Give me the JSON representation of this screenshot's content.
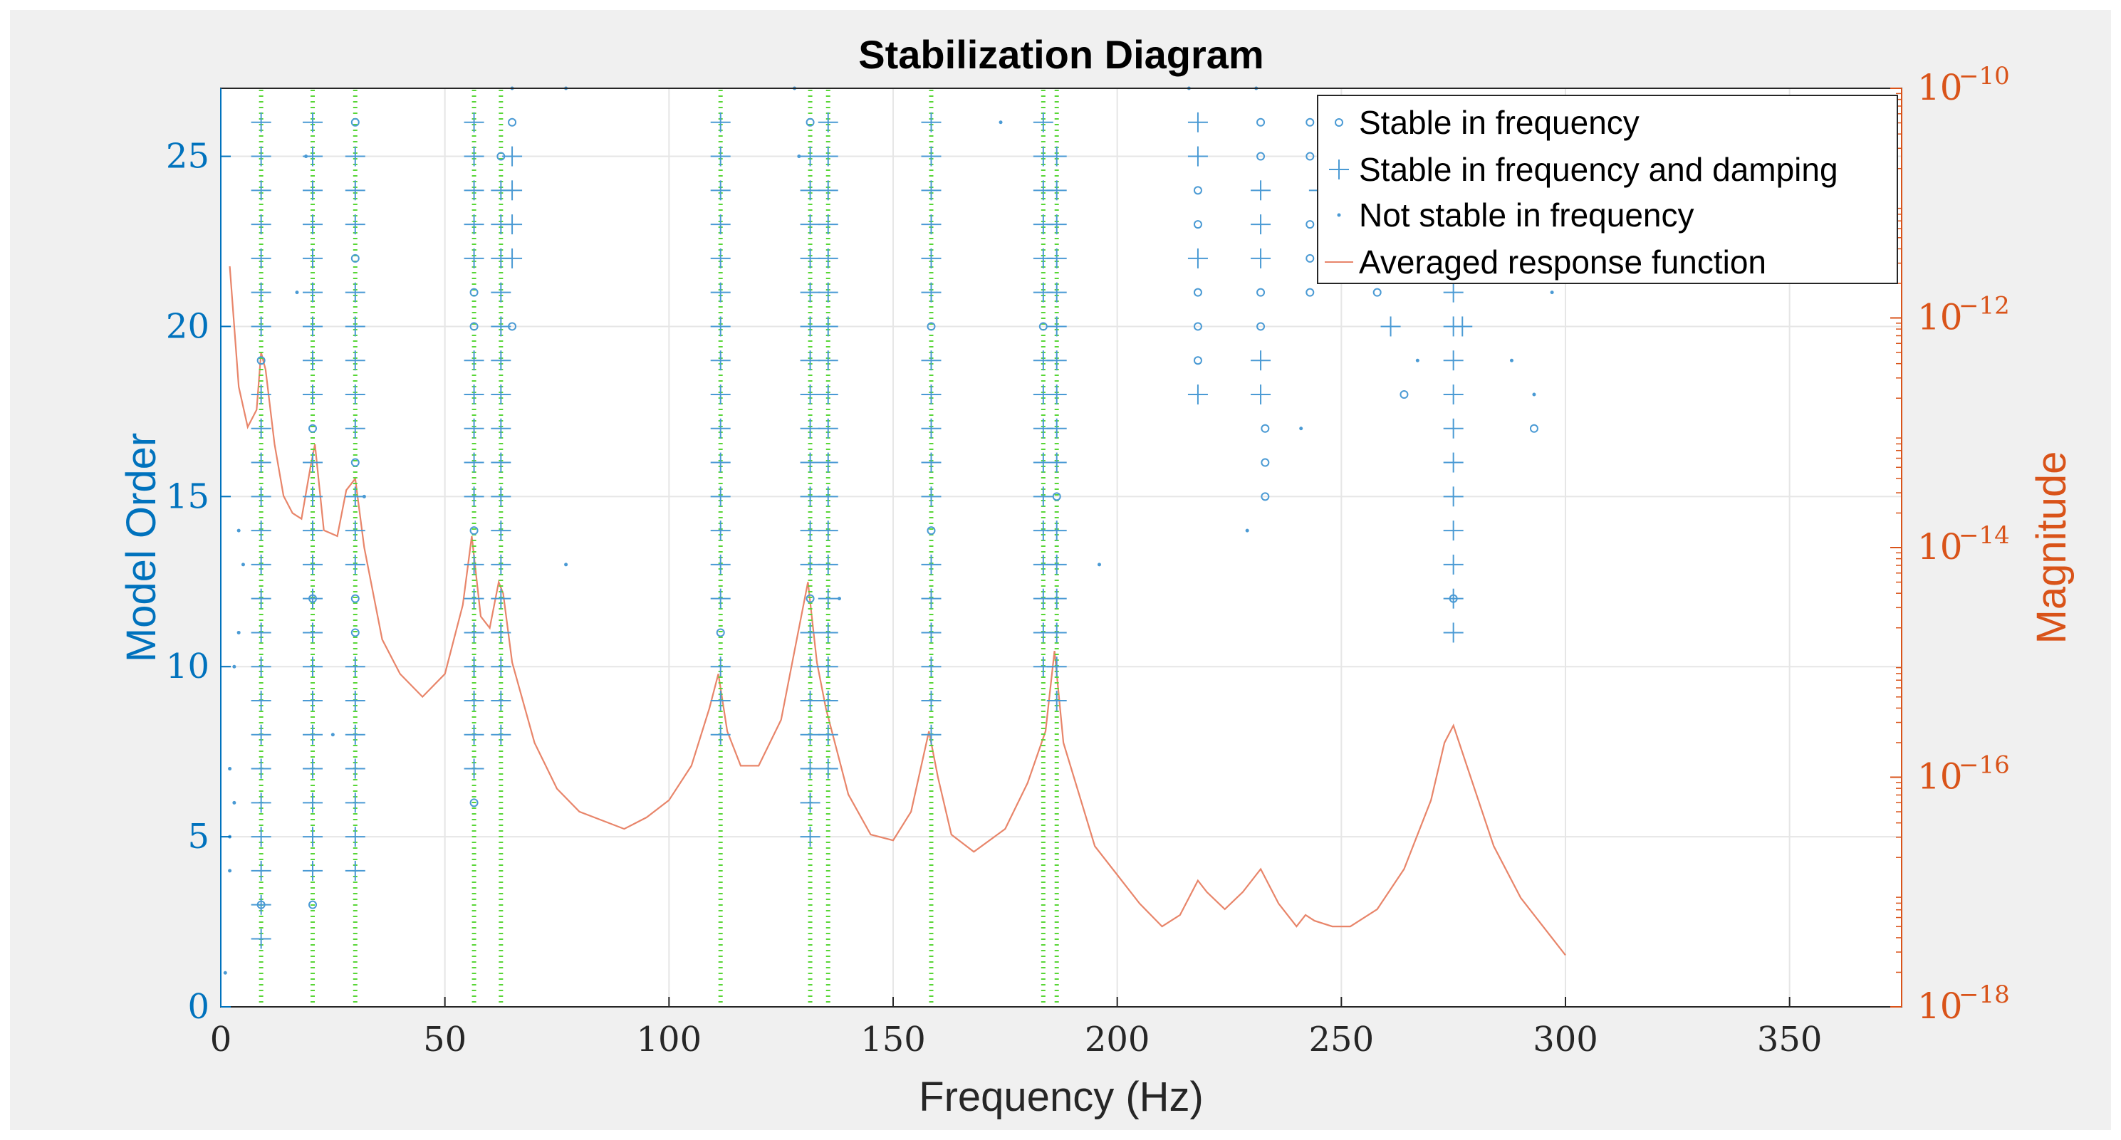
{
  "chart_data": {
    "type": "scatter",
    "title": "Stabilization Diagram",
    "xlabel": "Frequency (Hz)",
    "ylabel_left": "Model Order",
    "ylabel_right": "Magnitude",
    "xlim": [
      0,
      375
    ],
    "ylim_left": [
      0,
      27
    ],
    "ylim_right_log10": [
      -18,
      -10
    ],
    "x_ticks": [
      "0",
      "50",
      "100",
      "150",
      "200",
      "250",
      "300",
      "350"
    ],
    "x_tick_values": [
      0,
      50,
      100,
      150,
      200,
      250,
      300,
      350
    ],
    "y_ticks_left": [
      "0",
      "5",
      "10",
      "15",
      "20",
      "25"
    ],
    "y_tick_values_left": [
      0,
      5,
      10,
      15,
      20,
      25
    ],
    "y_ticks_right": [
      {
        "base": "10",
        "exp": "−10",
        "value": -10
      },
      {
        "base": "10",
        "exp": "−12",
        "value": -12
      },
      {
        "base": "10",
        "exp": "−14",
        "value": -14
      },
      {
        "base": "10",
        "exp": "−16",
        "value": -16
      },
      {
        "base": "10",
        "exp": "−18",
        "value": -18
      }
    ],
    "grid": true,
    "legend_position": "top-right",
    "legend": [
      "Stable in frequency",
      "Stable in frequency and damping",
      "Not stable in frequency",
      "Averaged response function"
    ],
    "colors": {
      "left_axis": "#0072bd",
      "right_axis": "#d95319",
      "markers": "#4a9ad4",
      "frf": "#e8856a",
      "modes": "#58d636",
      "grid": "#e6e6e6",
      "background": "#f0f0f0"
    },
    "stable_modes_hz": [
      9,
      20.5,
      30,
      56.5,
      62.5,
      111.5,
      131.5,
      135.5,
      158.5,
      183.5,
      186.5
    ],
    "series_stable_freq_damp": [
      {
        "x": 9,
        "orders": [
          2,
          3,
          4,
          5,
          6,
          7,
          8,
          9,
          10,
          11,
          12,
          13,
          14,
          15,
          16,
          17,
          18,
          20,
          21,
          22,
          23,
          24,
          25,
          26
        ]
      },
      {
        "x": 20.5,
        "orders": [
          4,
          5,
          6,
          7,
          8,
          9,
          10,
          11,
          12,
          13,
          14,
          15,
          16,
          18,
          19,
          20,
          21,
          22,
          23,
          24,
          25,
          26
        ]
      },
      {
        "x": 30,
        "orders": [
          4,
          5,
          6,
          7,
          8,
          9,
          10,
          13,
          14,
          15,
          17,
          18,
          19,
          20,
          21,
          23,
          24,
          25
        ]
      },
      {
        "x": 56.5,
        "orders": [
          7,
          8,
          9,
          10,
          11,
          12,
          13,
          15,
          16,
          17,
          18,
          19,
          22,
          23,
          24,
          25,
          26
        ]
      },
      {
        "x": 62.5,
        "orders": [
          8,
          9,
          10,
          11,
          12,
          13,
          14,
          15,
          16,
          17,
          18,
          19,
          20,
          21,
          22,
          23,
          24
        ]
      },
      {
        "x": 65,
        "orders": [
          22,
          23,
          24,
          25
        ]
      },
      {
        "x": 111.5,
        "orders": [
          8,
          9,
          10,
          12,
          13,
          14,
          15,
          16,
          17,
          18,
          19,
          20,
          21,
          22,
          23,
          24,
          25,
          26
        ]
      },
      {
        "x": 131.5,
        "orders": [
          5,
          6,
          7,
          8,
          9,
          10,
          11,
          13,
          14,
          15,
          16,
          17,
          18,
          19,
          20,
          21,
          22,
          23,
          24,
          25
        ]
      },
      {
        "x": 135.5,
        "orders": [
          7,
          8,
          9,
          10,
          11,
          12,
          13,
          14,
          15,
          16,
          17,
          18,
          19,
          20,
          21,
          22,
          23,
          24,
          25,
          26
        ]
      },
      {
        "x": 158.5,
        "orders": [
          8,
          9,
          10,
          11,
          12,
          13,
          15,
          16,
          17,
          18,
          19,
          21,
          22,
          23,
          24,
          25,
          26
        ]
      },
      {
        "x": 183.5,
        "orders": [
          10,
          11,
          12,
          13,
          14,
          15,
          16,
          17,
          18,
          19,
          21,
          22,
          23,
          24,
          25,
          26
        ]
      },
      {
        "x": 186.5,
        "orders": [
          9,
          10,
          11,
          12,
          13,
          14,
          16,
          17,
          18,
          19,
          20,
          21,
          22,
          23,
          24,
          25
        ]
      },
      {
        "x": 218,
        "orders": [
          18,
          22,
          25,
          26
        ]
      },
      {
        "x": 232,
        "orders": [
          18,
          19,
          22,
          23,
          24
        ]
      },
      {
        "x": 245,
        "orders": [
          24
        ]
      },
      {
        "x": 261,
        "orders": [
          20
        ]
      },
      {
        "x": 275,
        "orders": [
          11,
          12,
          13,
          14,
          15,
          16,
          17,
          18,
          19,
          20,
          21
        ]
      },
      {
        "x": 277,
        "orders": [
          20
        ]
      }
    ],
    "series_stable_freq": [
      {
        "x": 9,
        "orders": [
          3,
          19
        ]
      },
      {
        "x": 20.5,
        "orders": [
          3,
          12,
          17
        ]
      },
      {
        "x": 30,
        "orders": [
          11,
          12,
          16,
          22,
          26
        ]
      },
      {
        "x": 56.5,
        "orders": [
          6,
          14,
          20,
          21
        ]
      },
      {
        "x": 62.5,
        "orders": [
          25
        ]
      },
      {
        "x": 65,
        "orders": [
          20,
          26
        ]
      },
      {
        "x": 111.5,
        "orders": [
          11
        ]
      },
      {
        "x": 131.5,
        "orders": [
          12,
          26
        ]
      },
      {
        "x": 158.5,
        "orders": [
          14,
          20
        ]
      },
      {
        "x": 183.5,
        "orders": [
          20
        ]
      },
      {
        "x": 186.5,
        "orders": [
          15
        ]
      },
      {
        "x": 218,
        "orders": [
          19,
          20,
          21,
          23,
          24
        ]
      },
      {
        "x": 232,
        "orders": [
          20,
          21,
          25,
          26
        ]
      },
      {
        "x": 233,
        "orders": [
          15,
          16,
          17
        ]
      },
      {
        "x": 243,
        "orders": [
          21,
          22,
          23,
          25,
          26
        ]
      },
      {
        "x": 258,
        "orders": [
          21
        ]
      },
      {
        "x": 264,
        "orders": [
          18
        ]
      },
      {
        "x": 275,
        "orders": [
          12
        ]
      },
      {
        "x": 293,
        "orders": [
          17
        ]
      }
    ],
    "series_not_stable": [
      {
        "x": 1,
        "y": 1
      },
      {
        "x": 2,
        "y": 4
      },
      {
        "x": 2,
        "y": 5
      },
      {
        "x": 3,
        "y": 6
      },
      {
        "x": 2,
        "y": 7
      },
      {
        "x": 3,
        "y": 10
      },
      {
        "x": 4,
        "y": 11
      },
      {
        "x": 5,
        "y": 13
      },
      {
        "x": 4,
        "y": 14
      },
      {
        "x": 17,
        "y": 21
      },
      {
        "x": 19,
        "y": 25
      },
      {
        "x": 25,
        "y": 8
      },
      {
        "x": 32,
        "y": 15
      },
      {
        "x": 65,
        "y": 27
      },
      {
        "x": 77,
        "y": 27
      },
      {
        "x": 77,
        "y": 13
      },
      {
        "x": 128,
        "y": 27
      },
      {
        "x": 129,
        "y": 25
      },
      {
        "x": 138,
        "y": 12
      },
      {
        "x": 174,
        "y": 26
      },
      {
        "x": 196,
        "y": 13
      },
      {
        "x": 216,
        "y": 27
      },
      {
        "x": 229,
        "y": 14
      },
      {
        "x": 231,
        "y": 27
      },
      {
        "x": 241,
        "y": 17
      },
      {
        "x": 267,
        "y": 19
      },
      {
        "x": 288,
        "y": 19
      },
      {
        "x": 293,
        "y": 18
      },
      {
        "x": 297,
        "y": 21
      }
    ],
    "averaged_response_function": {
      "x": [
        2,
        4,
        6,
        8,
        9,
        10,
        12,
        14,
        16,
        18,
        20,
        21,
        23,
        26,
        28,
        30,
        32,
        36,
        40,
        45,
        50,
        54,
        56,
        58,
        60,
        62,
        63,
        65,
        70,
        75,
        80,
        90,
        95,
        100,
        105,
        109,
        111,
        113,
        116,
        120,
        125,
        129,
        131,
        133,
        135,
        140,
        145,
        150,
        154,
        158,
        160,
        163,
        168,
        175,
        180,
        184,
        186,
        188,
        195,
        205,
        210,
        214,
        218,
        220,
        224,
        228,
        232,
        236,
        240,
        242,
        244,
        248,
        252,
        258,
        264,
        270,
        273,
        275,
        278,
        284,
        290,
        295,
        300
      ],
      "log10_magnitude": [
        -11.55,
        -12.6,
        -12.95,
        -12.8,
        -12.3,
        -12.45,
        -13.1,
        -13.55,
        -13.7,
        -13.75,
        -13.3,
        -13.1,
        -13.85,
        -13.9,
        -13.5,
        -13.4,
        -14,
        -14.8,
        -15.1,
        -15.3,
        -15.1,
        -14.5,
        -13.9,
        -14.6,
        -14.7,
        -14.3,
        -14.4,
        -15.0,
        -15.7,
        -16.1,
        -16.3,
        -16.45,
        -16.35,
        -16.2,
        -15.9,
        -15.4,
        -15.1,
        -15.6,
        -15.9,
        -15.9,
        -15.5,
        -14.7,
        -14.3,
        -15.0,
        -15.4,
        -16.15,
        -16.5,
        -16.55,
        -16.3,
        -15.6,
        -16.0,
        -16.5,
        -16.65,
        -16.45,
        -16.05,
        -15.6,
        -14.9,
        -15.7,
        -16.6,
        -17.1,
        -17.3,
        -17.2,
        -16.9,
        -17.0,
        -17.15,
        -17.0,
        -16.8,
        -17.1,
        -17.3,
        -17.2,
        -17.25,
        -17.3,
        -17.3,
        -17.15,
        -16.8,
        -16.2,
        -15.7,
        -15.55,
        -15.9,
        -16.6,
        -17.05,
        -17.3,
        -17.55
      ]
    }
  }
}
